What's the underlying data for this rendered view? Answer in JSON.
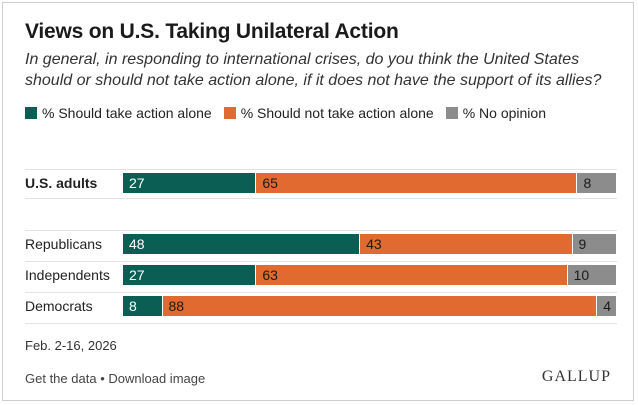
{
  "header": {
    "title": "Views on U.S. Taking Unilateral Action",
    "subtitle": "In general, in responding to international crises, do you think the United States should or should not take action alone, if it does not have the support of its allies?"
  },
  "legend": [
    {
      "label": "% Should take action alone",
      "color": "#0b5e54"
    },
    {
      "label": "% Should not take action alone",
      "color": "#e06a2f"
    },
    {
      "label": "% No opinion",
      "color": "#8c8c8c"
    }
  ],
  "chart_data": {
    "type": "bar",
    "orientation": "horizontal",
    "stacked": true,
    "categories": [
      "U.S. adults",
      "Republicans",
      "Independents",
      "Democrats"
    ],
    "series": [
      {
        "name": "% Should take action alone",
        "values": [
          27,
          48,
          27,
          8
        ],
        "color": "#0b5e54"
      },
      {
        "name": "% Should not take action alone",
        "values": [
          65,
          43,
          63,
          88
        ],
        "color": "#e06a2f"
      },
      {
        "name": "% No opinion",
        "values": [
          8,
          9,
          10,
          4
        ],
        "color": "#8c8c8c"
      }
    ],
    "xlim": [
      0,
      100
    ],
    "title": "Views on U.S. Taking Unilateral Action",
    "xlabel": "",
    "ylabel": ""
  },
  "footer": {
    "date": "Feb. 2-16, 2026",
    "get_data": "Get the data",
    "separator": "•",
    "download": "Download image",
    "brand": "GALLUP"
  }
}
